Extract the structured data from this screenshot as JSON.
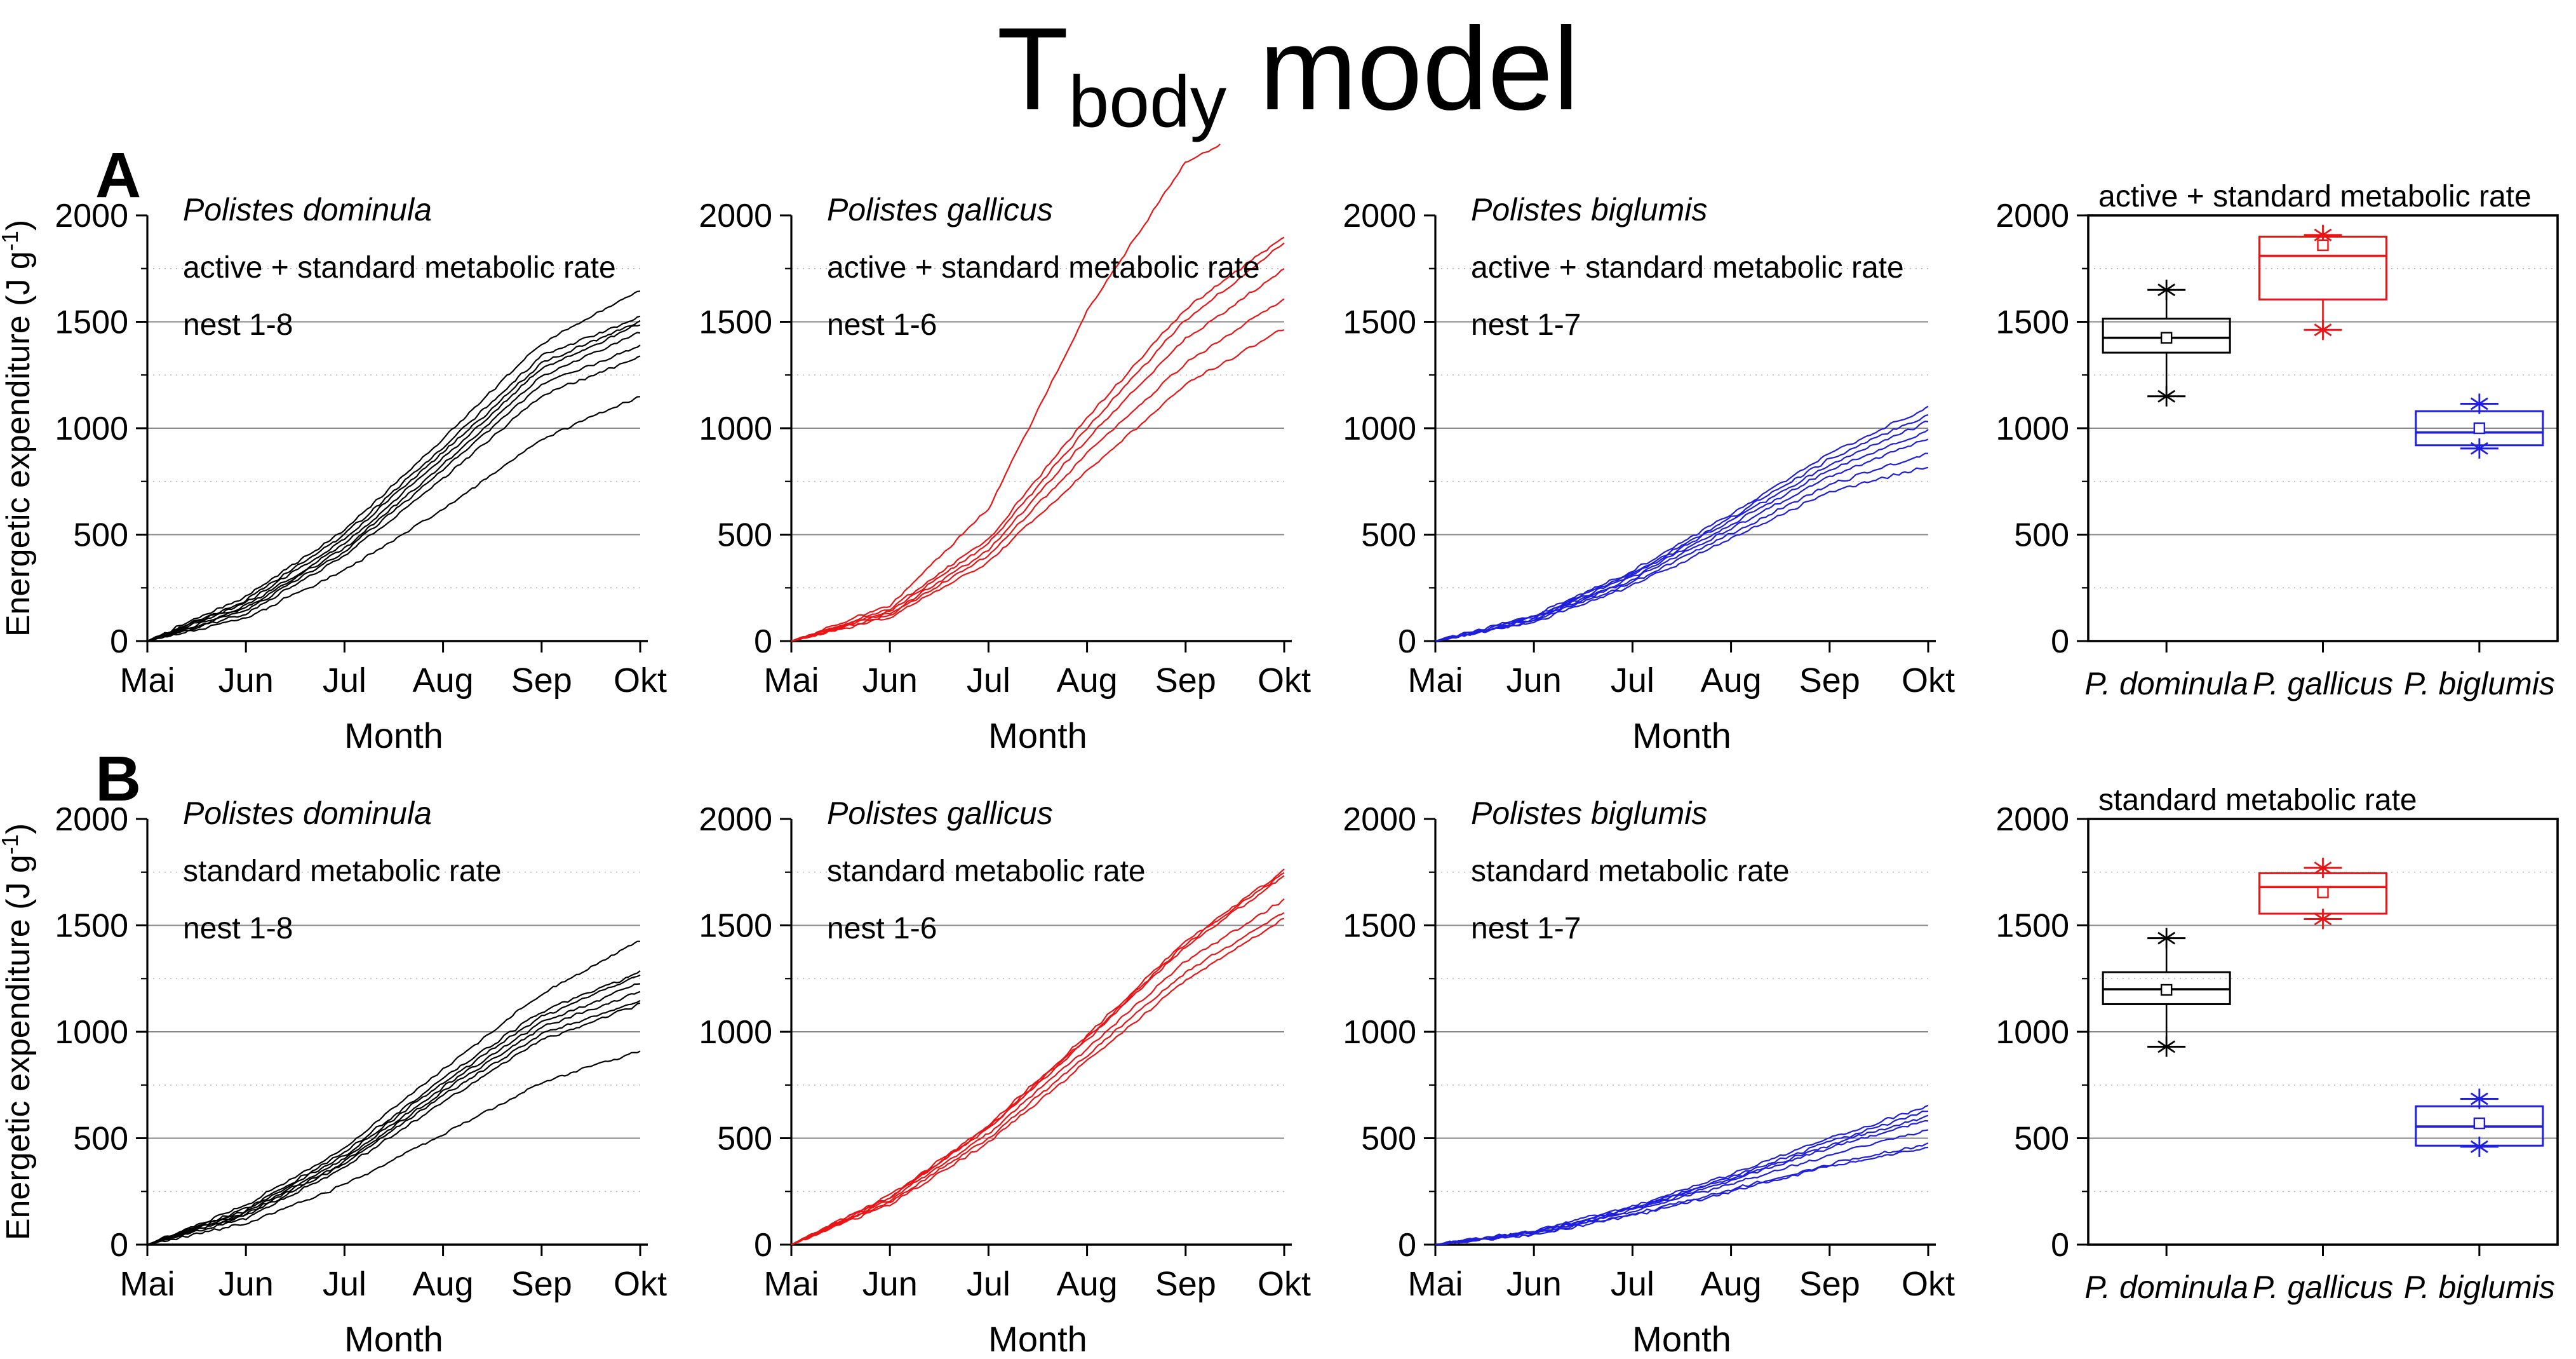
{
  "title": {
    "prefix": "T",
    "subscript": "body",
    "suffix": " model"
  },
  "axes": {
    "ylim": [
      0,
      2000
    ],
    "ymajor": 500,
    "yminor": 250,
    "grid_solid_at": [
      500,
      1000,
      1500
    ],
    "grid_dotted_at": [
      250,
      750,
      1250,
      1750
    ],
    "months": [
      "Mai",
      "Jun",
      "Jul",
      "Aug",
      "Sep",
      "Okt"
    ],
    "xlabel": "Month",
    "ylabel": {
      "text": "Energetic expenditure (J g",
      "sup": "-1",
      "close": ")"
    }
  },
  "colors": {
    "dominula": "#000000",
    "gallicus": "#e81416",
    "biglumis": "#1e1edc",
    "grid_solid": "#878787",
    "grid_dotted": "#b5b5b5",
    "axis": "#000000"
  },
  "chart_data": [
    {
      "id": "A1-dominula",
      "row": "A",
      "row_label": "A",
      "show_ylabel": true,
      "type": "line",
      "species": "Polistes dominula",
      "rate_label": "active + standard metabolic rate",
      "nest_label": "nest 1-8",
      "color_key": "dominula",
      "ylim": [
        0,
        2000
      ],
      "x_months": [
        0,
        1,
        2,
        3,
        4,
        5
      ],
      "series": [
        {
          "y": [
            0,
            210,
            520,
            950,
            1400,
            1650
          ]
        },
        {
          "y": [
            0,
            190,
            500,
            910,
            1340,
            1520
          ]
        },
        {
          "y": [
            0,
            180,
            480,
            885,
            1305,
            1505
          ]
        },
        {
          "y": [
            0,
            165,
            455,
            860,
            1280,
            1490
          ]
        },
        {
          "y": [
            0,
            155,
            435,
            830,
            1245,
            1450
          ]
        },
        {
          "y": [
            0,
            145,
            420,
            805,
            1205,
            1390
          ]
        },
        {
          "y": [
            0,
            130,
            400,
            765,
            1155,
            1335
          ]
        },
        {
          "y": [
            0,
            110,
            330,
            620,
            950,
            1150
          ]
        }
      ]
    },
    {
      "id": "A2-gallicus",
      "row": "A",
      "type": "line",
      "species": "Polistes gallicus",
      "rate_label": "active + standard metabolic rate",
      "nest_label": "nest 1-6",
      "color_key": "gallicus",
      "ylim": [
        0,
        2000
      ],
      "x_months": [
        0,
        1,
        2,
        3,
        4,
        5
      ],
      "series": [
        {
          "x": [
            0,
            1,
            2,
            3,
            4,
            4.35
          ],
          "y": [
            0,
            170,
            620,
            1550,
            2250,
            2335
          ],
          "note": "clipped above axis maximum"
        },
        {
          "y": [
            0,
            150,
            480,
            1050,
            1560,
            1900
          ]
        },
        {
          "y": [
            0,
            140,
            455,
            1000,
            1510,
            1870
          ]
        },
        {
          "y": [
            0,
            132,
            425,
            950,
            1420,
            1745
          ]
        },
        {
          "y": [
            0,
            122,
            400,
            880,
            1305,
            1610
          ]
        },
        {
          "y": [
            0,
            112,
            370,
            800,
            1205,
            1470
          ]
        }
      ]
    },
    {
      "id": "A3-biglumis",
      "row": "A",
      "type": "line",
      "species": "Polistes biglumis",
      "rate_label": "active + standard metabolic rate",
      "nest_label": "nest 1-7",
      "color_key": "biglumis",
      "ylim": [
        0,
        2000
      ],
      "x_months": [
        0,
        1,
        2,
        3,
        4,
        5
      ],
      "series": [
        {
          "y": [
            0,
            120,
            330,
            600,
            880,
            1100
          ]
        },
        {
          "y": [
            0,
            115,
            320,
            580,
            855,
            1065
          ]
        },
        {
          "y": [
            0,
            110,
            310,
            565,
            830,
            1030
          ]
        },
        {
          "y": [
            0,
            105,
            300,
            548,
            805,
            990
          ]
        },
        {
          "y": [
            0,
            100,
            290,
            530,
            775,
            950
          ]
        },
        {
          "y": [
            0,
            95,
            275,
            505,
            735,
            880
          ]
        },
        {
          "y": [
            0,
            90,
            260,
            480,
            700,
            820
          ]
        }
      ]
    },
    {
      "id": "A4-boxplot",
      "row": "A",
      "type": "box",
      "title": "active + standard metabolic rate",
      "ylim": [
        0,
        2000
      ],
      "categories": [
        "P. dominula",
        "P. gallicus",
        "P. biglumis"
      ],
      "color_keys": [
        "dominula",
        "gallicus",
        "biglumis"
      ],
      "stats": [
        {
          "species": "P. dominula",
          "min": 1150,
          "q1": 1355,
          "median": 1425,
          "mean": 1425,
          "q3": 1515,
          "max": 1650
        },
        {
          "species": "P. gallicus",
          "min": 1462,
          "q1": 1605,
          "median": 1810,
          "mean": 1860,
          "q3": 1900,
          "max": 1908
        },
        {
          "species": "P. biglumis",
          "min": 905,
          "q1": 920,
          "median": 980,
          "mean": 1000,
          "q3": 1080,
          "max": 1115
        }
      ]
    },
    {
      "id": "B1-dominula",
      "row": "B",
      "row_label": "B",
      "show_ylabel": true,
      "type": "line",
      "species": "Polistes dominula",
      "rate_label": "standard metabolic rate",
      "nest_label": "nest 1-8",
      "color_key": "dominula",
      "ylim": [
        0,
        2000
      ],
      "x_months": [
        0,
        1,
        2,
        3,
        4,
        5
      ],
      "series": [
        {
          "y": [
            0,
            185,
            455,
            825,
            1180,
            1430
          ]
        },
        {
          "y": [
            0,
            168,
            432,
            782,
            1095,
            1280
          ]
        },
        {
          "y": [
            0,
            158,
            420,
            762,
            1072,
            1265
          ]
        },
        {
          "y": [
            0,
            150,
            402,
            740,
            1042,
            1230
          ]
        },
        {
          "y": [
            0,
            142,
            390,
            720,
            1020,
            1190
          ]
        },
        {
          "y": [
            0,
            135,
            380,
            700,
            992,
            1145
          ]
        },
        {
          "y": [
            0,
            126,
            362,
            672,
            962,
            1130
          ]
        },
        {
          "y": [
            0,
            100,
            280,
            520,
            762,
            910
          ]
        }
      ]
    },
    {
      "id": "B2-gallicus",
      "row": "B",
      "type": "line",
      "species": "Polistes gallicus",
      "rate_label": "standard metabolic rate",
      "nest_label": "nest 1-6",
      "color_key": "gallicus",
      "ylim": [
        0,
        2000
      ],
      "x_months": [
        0,
        1,
        2,
        3,
        4,
        5
      ],
      "series": [
        {
          "y": [
            0,
            230,
            560,
            985,
            1425,
            1760
          ]
        },
        {
          "y": [
            0,
            225,
            552,
            972,
            1412,
            1748
          ]
        },
        {
          "y": [
            0,
            220,
            545,
            962,
            1400,
            1732
          ]
        },
        {
          "y": [
            0,
            210,
            522,
            922,
            1332,
            1620
          ]
        },
        {
          "y": [
            0,
            200,
            500,
            890,
            1282,
            1560
          ]
        },
        {
          "y": [
            0,
            190,
            480,
            860,
            1242,
            1530
          ]
        }
      ]
    },
    {
      "id": "B3-biglumis",
      "row": "B",
      "type": "line",
      "species": "Polistes biglumis",
      "rate_label": "standard metabolic rate",
      "nest_label": "nest 1-7",
      "color_key": "biglumis",
      "ylim": [
        0,
        2000
      ],
      "x_months": [
        0,
        1,
        2,
        3,
        4,
        5
      ],
      "series": [
        {
          "y": [
            0,
            65,
            180,
            330,
            500,
            650
          ]
        },
        {
          "y": [
            0,
            62,
            172,
            318,
            482,
            628
          ]
        },
        {
          "y": [
            0,
            60,
            168,
            310,
            468,
            605
          ]
        },
        {
          "y": [
            0,
            58,
            162,
            300,
            455,
            585
          ]
        },
        {
          "y": [
            0,
            55,
            155,
            285,
            422,
            540
          ]
        },
        {
          "y": [
            0,
            50,
            142,
            258,
            378,
            475
          ]
        },
        {
          "y": [
            0,
            48,
            136,
            250,
            368,
            460
          ]
        }
      ]
    },
    {
      "id": "B4-boxplot",
      "row": "B",
      "type": "box",
      "title": "standard metabolic rate",
      "ylim": [
        0,
        2000
      ],
      "categories": [
        "P. dominula",
        "P. gallicus",
        "P. biglumis"
      ],
      "color_keys": [
        "dominula",
        "gallicus",
        "biglumis"
      ],
      "stats": [
        {
          "species": "P. dominula",
          "min": 930,
          "q1": 1130,
          "median": 1200,
          "mean": 1197,
          "q3": 1280,
          "max": 1440
        },
        {
          "species": "P. gallicus",
          "min": 1530,
          "q1": 1555,
          "median": 1680,
          "mean": 1655,
          "q3": 1745,
          "max": 1770
        },
        {
          "species": "P. biglumis",
          "min": 460,
          "q1": 465,
          "median": 555,
          "mean": 570,
          "q3": 650,
          "max": 685
        }
      ]
    }
  ]
}
